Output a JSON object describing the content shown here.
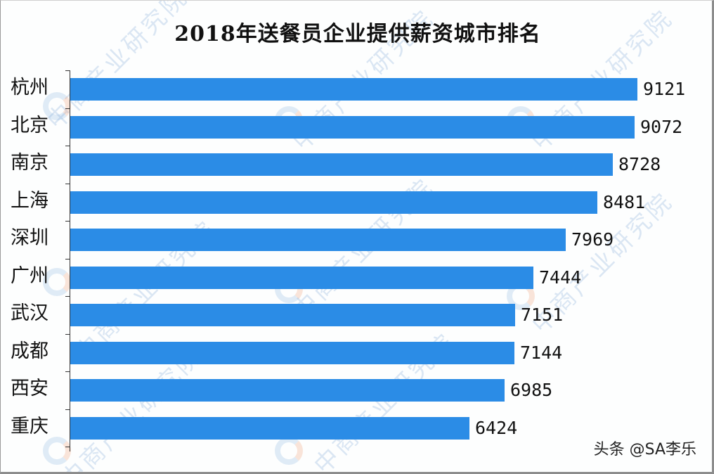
{
  "title": "2018年送餐员企业提供薪资城市排名",
  "watermark": "中商产业研究院",
  "credit": "头条 @SA李乐",
  "colors": {
    "bar": "#2b8ce6",
    "axis": "#333333",
    "text": "#111111"
  },
  "chart_data": {
    "type": "bar",
    "orientation": "horizontal",
    "title": "2018年送餐员企业提供薪资城市排名",
    "xlabel": "",
    "ylabel": "",
    "categories": [
      "杭州",
      "北京",
      "南京",
      "上海",
      "深圳",
      "广州",
      "武汉",
      "成都",
      "西安",
      "重庆"
    ],
    "values": [
      9121,
      9072,
      8728,
      8481,
      7969,
      7444,
      7151,
      7144,
      6985,
      6424
    ],
    "data_labels": true,
    "grid": false,
    "legend": null,
    "xlim": [
      0,
      9121
    ]
  }
}
